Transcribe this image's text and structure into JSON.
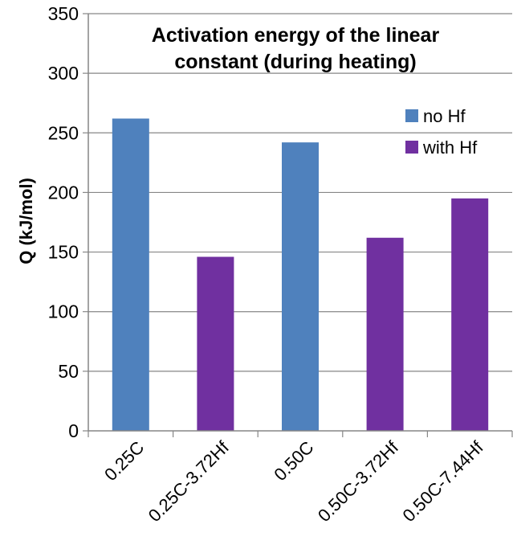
{
  "chart_data": {
    "type": "bar",
    "title_lines": [
      "Activation energy of the linear",
      "constant (during heating)"
    ],
    "xlabel": "",
    "ylabel": "Q (kJ/mol)",
    "ylim": [
      0,
      350
    ],
    "yticks": [
      0,
      50,
      100,
      150,
      200,
      250,
      300,
      350
    ],
    "grid": true,
    "legend_position": "top-right",
    "categories": [
      "0.25C",
      "0.25C-3.72Hf",
      "0.50C",
      "0.50C-3.72Hf",
      "0.50C-7.44Hf"
    ],
    "series": [
      {
        "name": "no Hf",
        "color": "#4F81BD",
        "values": [
          262,
          null,
          242,
          null,
          null
        ]
      },
      {
        "name": "with Hf",
        "color": "#7030A0",
        "values": [
          null,
          146,
          null,
          162,
          195
        ]
      }
    ]
  }
}
